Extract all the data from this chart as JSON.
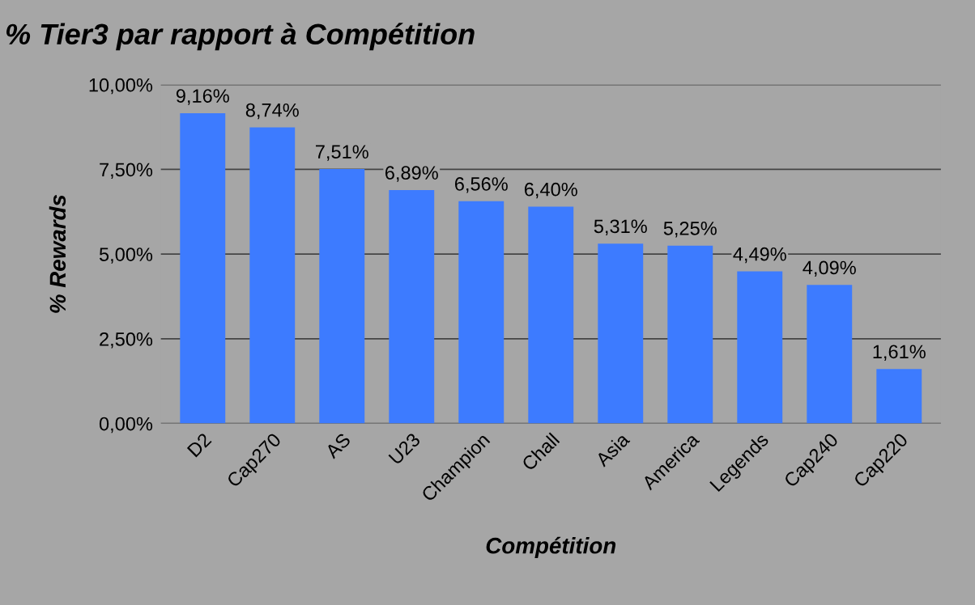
{
  "chart_data": {
    "type": "bar",
    "title": "% Tier3 par rapport à Compétition",
    "xlabel": "Compétition",
    "ylabel": "% Rewards",
    "categories": [
      "D2",
      "Cap270",
      "AS",
      "U23",
      "Champion",
      "Chall",
      "Asia",
      "America",
      "Legends",
      "Cap240",
      "Cap220"
    ],
    "values": [
      9.16,
      8.74,
      7.51,
      6.89,
      6.56,
      6.4,
      5.31,
      5.25,
      4.49,
      4.09,
      1.61
    ],
    "value_labels": [
      "9,16%",
      "8,74%",
      "7,51%",
      "6,89%",
      "6,56%",
      "6,40%",
      "5,31%",
      "5,25%",
      "4,49%",
      "4,09%",
      "1,61%"
    ],
    "color": "#3d7bff",
    "ylim": [
      0,
      10
    ],
    "yticks": [
      {
        "value": 0,
        "label": "0,00%"
      },
      {
        "value": 2.5,
        "label": "2,50%"
      },
      {
        "value": 5,
        "label": "5,00%"
      },
      {
        "value": 7.5,
        "label": "7,50%"
      },
      {
        "value": 10,
        "label": "10,00%"
      }
    ],
    "grid": "y",
    "legend": false
  }
}
